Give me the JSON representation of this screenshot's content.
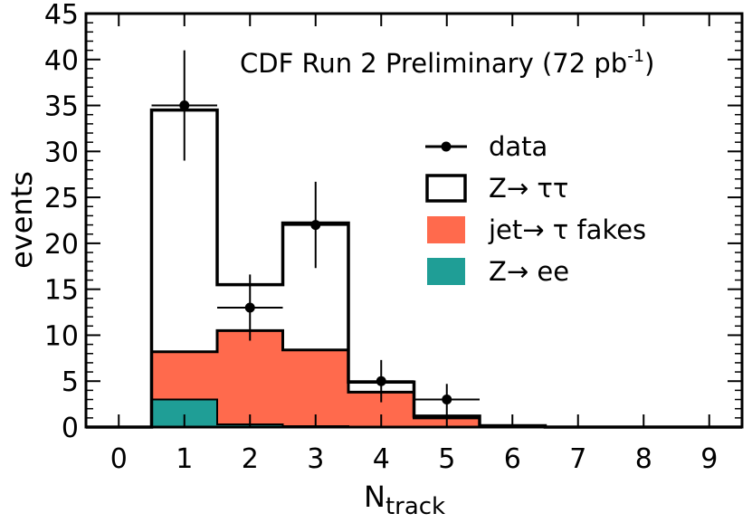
{
  "chart_data": {
    "type": "bar",
    "title": "CDF Run 2 Preliminary  (72 pb",
    "title_exponent": "-1",
    "title_suffix": ")",
    "xlabel": "N",
    "xlabel_subscript": "track",
    "ylabel": "events",
    "xlim": [
      -0.5,
      9.5
    ],
    "ylim": [
      0,
      45
    ],
    "x_ticks": [
      0,
      1,
      2,
      3,
      4,
      5,
      6,
      7,
      8,
      9
    ],
    "y_ticks": [
      0,
      5,
      10,
      15,
      20,
      25,
      30,
      35,
      40,
      45
    ],
    "bin_centers": [
      1,
      2,
      3,
      4,
      5,
      6
    ],
    "series": [
      {
        "name": "Z→ ee",
        "kind": "stacked-fill",
        "color": "#1f9e96",
        "values": [
          3.0,
          0.3,
          0.1,
          0.0,
          0.0,
          0.0
        ]
      },
      {
        "name": "jet→ τ fakes",
        "kind": "stacked-fill",
        "color": "#ff6a4d",
        "values": [
          5.2,
          10.2,
          8.3,
          3.8,
          1.0,
          0.05
        ]
      },
      {
        "name": "Z→ ττ",
        "kind": "stacked-outline",
        "color": "#000000",
        "values": [
          26.3,
          5.0,
          13.8,
          1.1,
          0.2,
          0.1
        ]
      }
    ],
    "data": {
      "name": "data",
      "x": [
        1,
        2,
        3,
        4,
        5
      ],
      "y": [
        35,
        13,
        22,
        5,
        3
      ],
      "y_err_low": [
        6,
        3.6,
        4.7,
        2.3,
        1.7
      ],
      "y_err_high": [
        6,
        3.6,
        4.7,
        2.3,
        1.7
      ]
    },
    "legend": [
      {
        "label": "data",
        "marker": "point-line"
      },
      {
        "label": "Z→ ττ",
        "marker": "open-box"
      },
      {
        "label": "jet→ τ fakes",
        "marker": "filled-box",
        "color": "#ff6a4d"
      },
      {
        "label": "Z→ ee",
        "marker": "filled-box",
        "color": "#1f9e96"
      }
    ],
    "legend_position": "right-center"
  }
}
